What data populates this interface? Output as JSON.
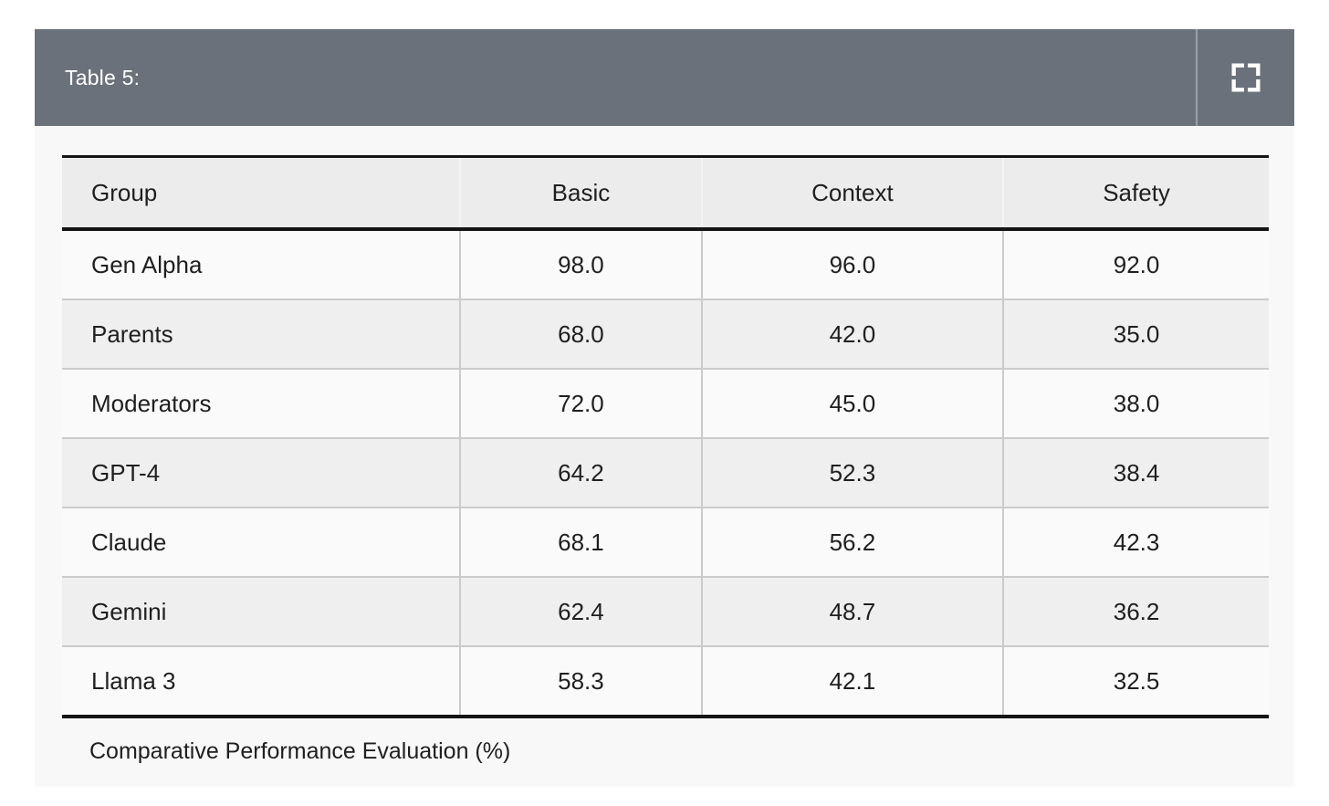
{
  "titlebar": {
    "title": "Table 5:",
    "fullscreen_icon": "fullscreen-expand-icon"
  },
  "table": {
    "columns": [
      "Group",
      "Basic",
      "Context",
      "Safety"
    ],
    "rows": [
      [
        "Gen Alpha",
        "98.0",
        "96.0",
        "92.0"
      ],
      [
        "Parents",
        "68.0",
        "42.0",
        "35.0"
      ],
      [
        "Moderators",
        "72.0",
        "45.0",
        "38.0"
      ],
      [
        "GPT-4",
        "64.2",
        "52.3",
        "38.4"
      ],
      [
        "Claude",
        "68.1",
        "56.2",
        "42.3"
      ],
      [
        "Gemini",
        "62.4",
        "48.7",
        "36.2"
      ],
      [
        "Llama 3",
        "58.3",
        "42.1",
        "32.5"
      ]
    ]
  },
  "caption": "Comparative Performance Evaluation (%)",
  "colors": {
    "titlebar_bg": "#6b717a",
    "titlebar_text": "#ffffff",
    "titlebar_divider": "#9ba0a7",
    "card_bg": "#f8f8f8",
    "header_row_bg": "#ececec",
    "row_odd_bg": "#fafafa",
    "row_even_bg": "#efefef",
    "heavy_border": "#141414",
    "light_border": "#cbcbcb",
    "text": "#1f1f1f",
    "page_bg": "#ffffff"
  }
}
